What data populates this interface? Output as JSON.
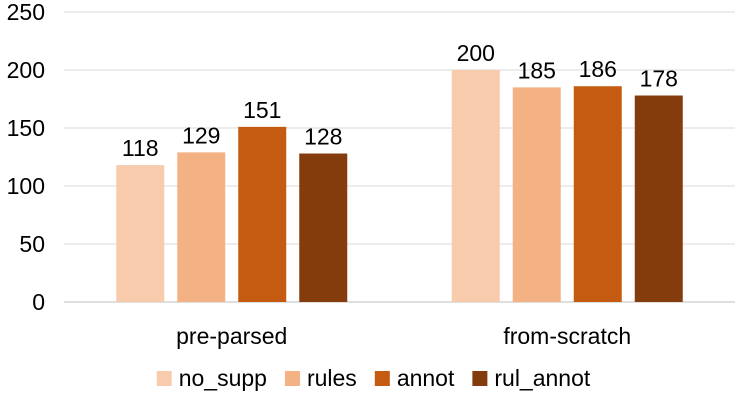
{
  "chart_data": {
    "type": "bar",
    "categories": [
      "pre-parsed",
      "from-scratch"
    ],
    "series": [
      {
        "name": "no_supp",
        "values": [
          118,
          200
        ],
        "color": "#f8cbad"
      },
      {
        "name": "rules",
        "values": [
          129,
          185
        ],
        "color": "#f4b183"
      },
      {
        "name": "annot",
        "values": [
          151,
          186
        ],
        "color": "#c55a11"
      },
      {
        "name": "rul_annot",
        "values": [
          128,
          178
        ],
        "color": "#843c0c"
      }
    ],
    "title": "",
    "xlabel": "",
    "ylabel": "",
    "ylim": [
      0,
      250
    ],
    "yticks": [
      0,
      50,
      100,
      150,
      200,
      250
    ],
    "grid": true,
    "legend_position": "bottom",
    "data_labels": true
  }
}
